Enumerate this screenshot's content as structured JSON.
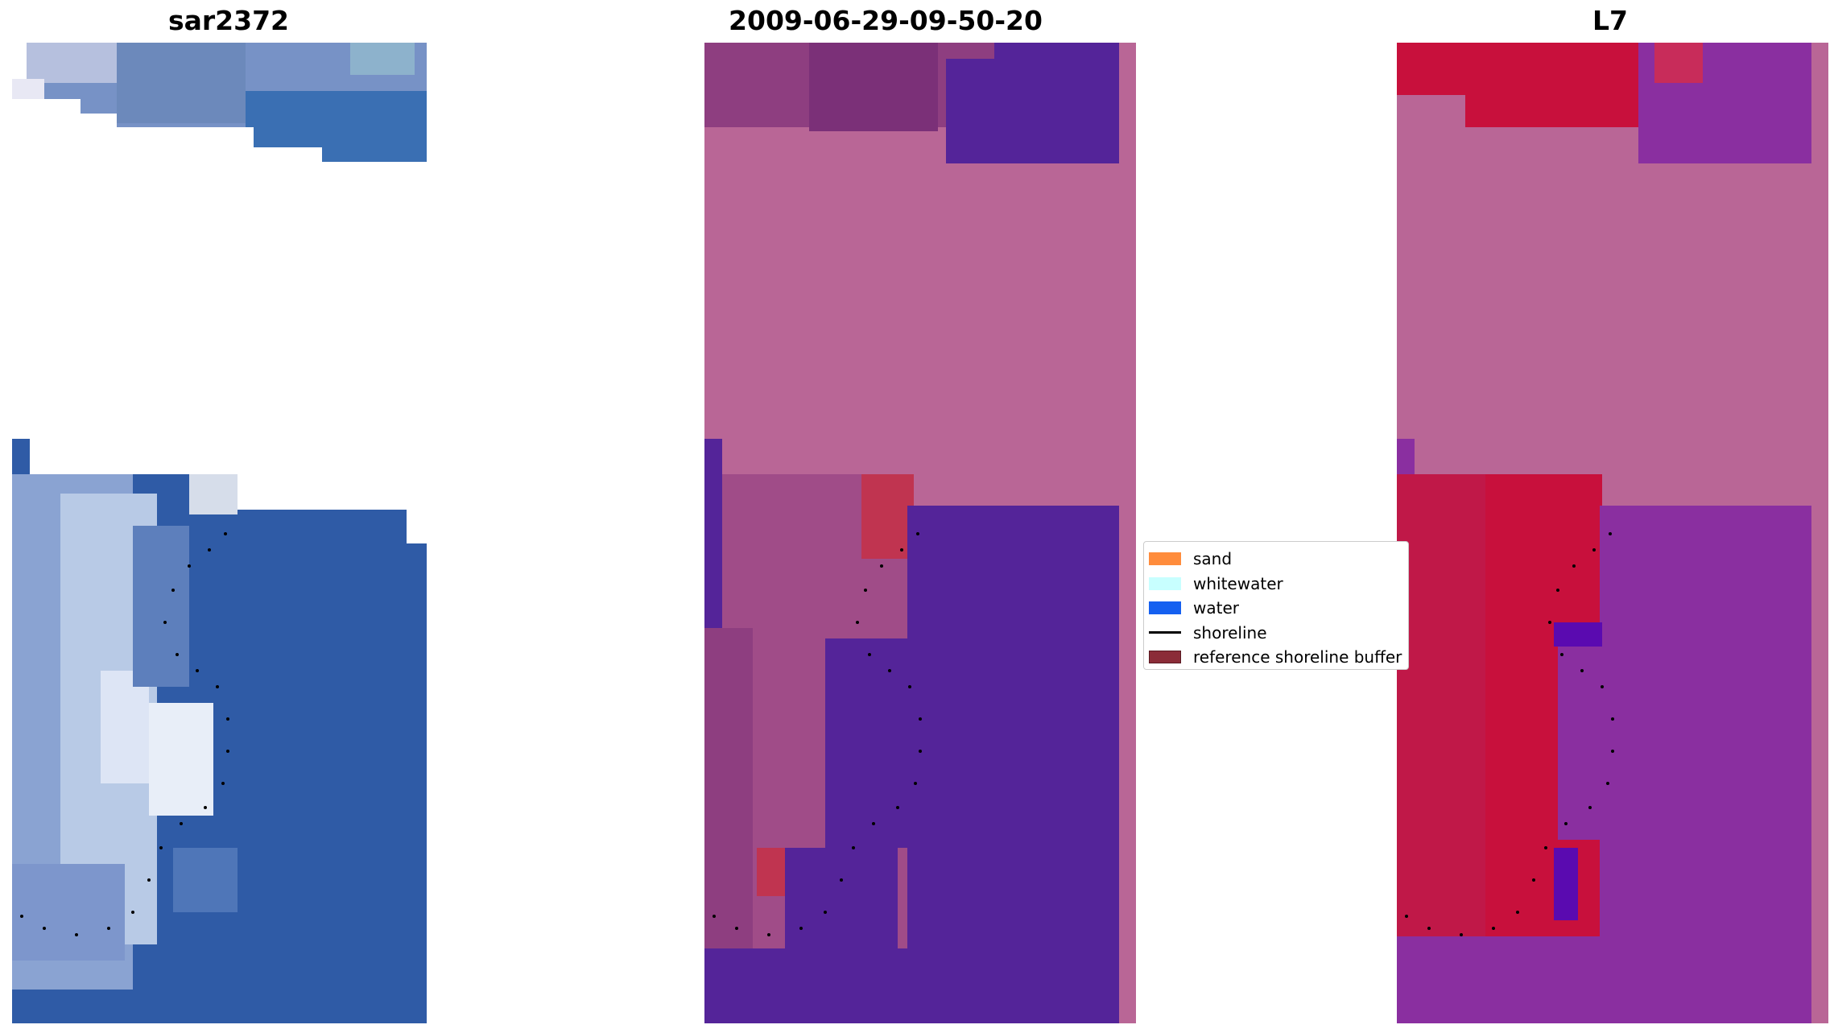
{
  "panels": [
    {
      "title": "sar2372"
    },
    {
      "title": "2009-06-29-09-50-20"
    },
    {
      "title": "L7"
    }
  ],
  "legend": {
    "items": [
      {
        "label": "sand",
        "kind": "patch",
        "color": "#ff8c3c"
      },
      {
        "label": "whitewater",
        "kind": "patch",
        "color": "#c8ffff"
      },
      {
        "label": "water",
        "kind": "patch",
        "color": "#1560f0"
      },
      {
        "label": "shoreline",
        "kind": "line",
        "color": "#000000"
      },
      {
        "label": "reference shoreline buffer",
        "kind": "patch",
        "color": "#8b2c38"
      }
    ]
  },
  "colors": {
    "rgb_water": "#2e5aa8",
    "rgb_land_light": "#aab8dc",
    "classified_land": "#b96696",
    "classified_water": "#542499",
    "classified_buffer": "#c03450",
    "mndwi_land": "#b96696",
    "mndwi_red": "#c8103c",
    "mndwi_purple": "#8a2fa0"
  }
}
